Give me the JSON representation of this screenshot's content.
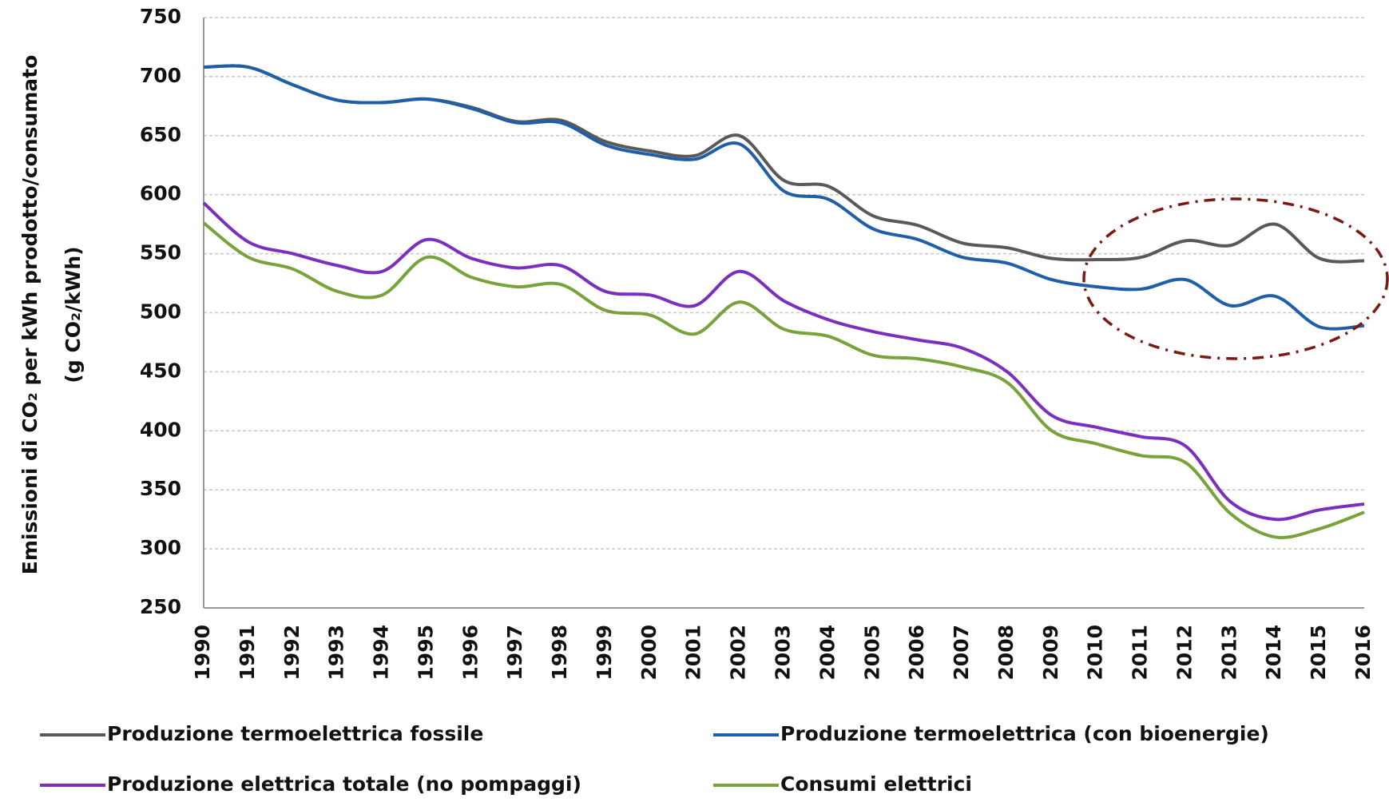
{
  "chart_data": {
    "type": "line",
    "y_label": [
      "Emissioni di CO₂ per kWh prodotto/consumato",
      "(g CO₂/kWh)"
    ],
    "categories": [
      "1990",
      "1991",
      "1992",
      "1993",
      "1994",
      "1995",
      "1996",
      "1997",
      "1998",
      "1999",
      "2000",
      "2001",
      "2002",
      "2003",
      "2004",
      "2005",
      "2006",
      "2007",
      "2008",
      "2009",
      "2010",
      "2011",
      "2012",
      "2013",
      "2014",
      "2015",
      "2016"
    ],
    "series": [
      {
        "name": "Produzione termoelettrica fossile",
        "color": "#595959",
        "values": [
          708,
          708,
          693,
          680,
          678,
          681,
          674,
          662,
          663,
          645,
          637,
          633,
          650,
          612,
          607,
          582,
          574,
          559,
          555,
          546,
          545,
          547,
          561,
          557,
          575,
          546,
          544
        ]
      },
      {
        "name": "Produzione termoelettrica (con bioenergie)",
        "color": "#1f5fa8",
        "values": [
          708,
          708,
          693,
          680,
          678,
          681,
          673,
          661,
          661,
          642,
          634,
          630,
          643,
          603,
          596,
          571,
          562,
          547,
          542,
          528,
          522,
          520,
          528,
          506,
          514,
          488,
          489
        ]
      },
      {
        "name": "Produzione elettrica totale (no pompaggi)",
        "color": "#7b2fbe",
        "values": [
          593,
          560,
          550,
          540,
          535,
          562,
          546,
          538,
          540,
          518,
          515,
          506,
          535,
          510,
          494,
          484,
          477,
          470,
          450,
          413,
          403,
          395,
          387,
          340,
          325,
          333,
          338
        ]
      },
      {
        "name": "Consumi elettrici",
        "color": "#77a33a",
        "values": [
          576,
          547,
          537,
          518,
          515,
          547,
          530,
          522,
          524,
          502,
          498,
          482,
          509,
          486,
          480,
          464,
          461,
          454,
          441,
          400,
          389,
          379,
          373,
          330,
          310,
          317,
          331
        ]
      }
    ],
    "ylim": [
      250,
      750
    ],
    "yticks": [
      250,
      300,
      350,
      400,
      450,
      500,
      550,
      600,
      650,
      700,
      750
    ],
    "grid": true,
    "legend": "bottom"
  }
}
